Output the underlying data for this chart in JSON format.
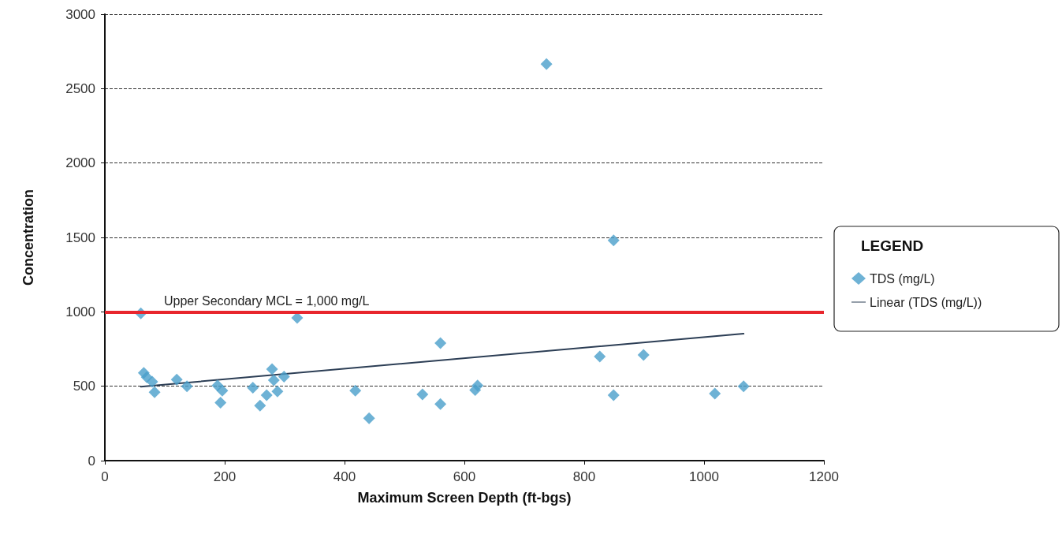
{
  "chart_data": {
    "type": "scatter",
    "xlabel": "Maximum Screen Depth (ft-bgs)",
    "ylabel": "Concentration",
    "legend_title": "LEGEND",
    "series": [
      {
        "name": "TDS (mg/L)",
        "type": "scatter",
        "color": "#4a9fcb",
        "marker": "diamond",
        "x": [
          60,
          65,
          70,
          79,
          83,
          120,
          137,
          188,
          193,
          196,
          247,
          259,
          270,
          279,
          282,
          288,
          299,
          321,
          418,
          441,
          530,
          560,
          560,
          618,
          622,
          737,
          826,
          849,
          849,
          899,
          1018,
          1066
        ],
        "values": [
          990,
          590,
          560,
          530,
          460,
          545,
          500,
          505,
          390,
          470,
          490,
          370,
          440,
          615,
          540,
          465,
          565,
          960,
          470,
          285,
          445,
          790,
          380,
          475,
          505,
          2665,
          700,
          1480,
          440,
          710,
          450,
          500
        ]
      },
      {
        "name": "Linear (TDS (mg/L))",
        "type": "line",
        "color": "#2c3e55",
        "marker": "none",
        "line_style": "solid",
        "x": [
          60,
          1066
        ],
        "values": [
          497,
          853
        ]
      }
    ],
    "xlim": [
      0,
      1200
    ],
    "xticks": [
      0,
      200,
      400,
      600,
      800,
      1000,
      1200
    ],
    "ylim": [
      0,
      3000
    ],
    "yticks": [
      0,
      500,
      1000,
      1500,
      2000,
      2500,
      3000
    ],
    "grid": "y",
    "legend": "right",
    "ref_lines": [
      {
        "axis": "y",
        "value": 1000,
        "label": "Upper Secondary MCL = 1,000 mg/L",
        "color": "#e8262d",
        "line_style": "solid"
      }
    ]
  }
}
